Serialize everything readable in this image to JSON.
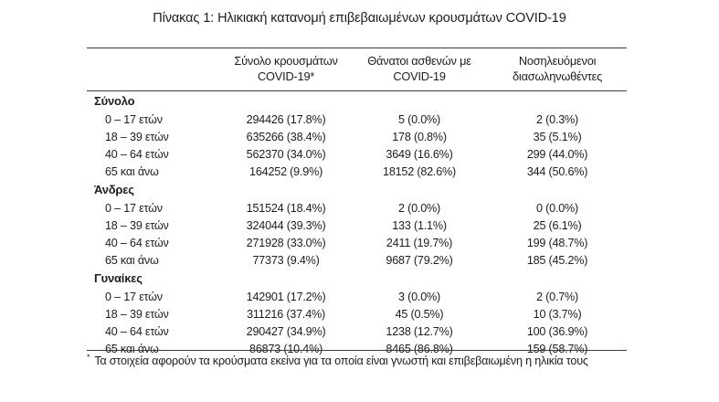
{
  "title": "Πίνακας 1: Ηλικιακή κατανομή επιβεβαιωμένων κρουσμάτων COVID-19",
  "table": {
    "columns": [
      {
        "line1": "Σύνολο κρουσμάτων",
        "line2": "COVID-19*"
      },
      {
        "line1": "Θάνατοι ασθενών με",
        "line2": "COVID-19"
      },
      {
        "line1": "Νοσηλευόμενοι",
        "line2": "διασωληνωθέντες"
      }
    ],
    "sections": [
      {
        "label": "Σύνολο",
        "rows": [
          {
            "age": "0 – 17 ετών",
            "cases": "294426 (17.8%)",
            "deaths": "5 (0.0%)",
            "intubated": "2 (0.3%)"
          },
          {
            "age": "18 – 39 ετών",
            "cases": "635266 (38.4%)",
            "deaths": "178 (0.8%)",
            "intubated": "35 (5.1%)"
          },
          {
            "age": "40 – 64 ετών",
            "cases": "562370 (34.0%)",
            "deaths": "3649 (16.6%)",
            "intubated": "299 (44.0%)"
          },
          {
            "age": "65 και άνω",
            "cases": "164252 (9.9%)",
            "deaths": "18152 (82.6%)",
            "intubated": "344 (50.6%)"
          }
        ]
      },
      {
        "label": "Άνδρες",
        "rows": [
          {
            "age": "0 – 17 ετών",
            "cases": "151524 (18.4%)",
            "deaths": "2 (0.0%)",
            "intubated": "0 (0.0%)"
          },
          {
            "age": "18 – 39 ετών",
            "cases": "324044 (39.3%)",
            "deaths": "133 (1.1%)",
            "intubated": "25 (6.1%)"
          },
          {
            "age": "40 – 64 ετών",
            "cases": "271928 (33.0%)",
            "deaths": "2411 (19.7%)",
            "intubated": "199 (48.7%)"
          },
          {
            "age": "65 και άνω",
            "cases": "77373 (9.4%)",
            "deaths": "9687 (79.2%)",
            "intubated": "185 (45.2%)"
          }
        ]
      },
      {
        "label": "Γυναίκες",
        "rows": [
          {
            "age": "0 – 17 ετών",
            "cases": "142901 (17.2%)",
            "deaths": "3 (0.0%)",
            "intubated": "2 (0.7%)"
          },
          {
            "age": "18 – 39 ετών",
            "cases": "311216 (37.4%)",
            "deaths": "45 (0.5%)",
            "intubated": "10 (3.7%)"
          },
          {
            "age": "40 – 64 ετών",
            "cases": "290427 (34.9%)",
            "deaths": "1238 (12.7%)",
            "intubated": "100 (36.9%)"
          },
          {
            "age": "65 και άνω",
            "cases": "86873 (10.4%)",
            "deaths": "8465 (86.8%)",
            "intubated": "159 (58.7%)"
          }
        ]
      }
    ]
  },
  "footnote": {
    "marker": "*",
    "text": "Τα στοιχεία αφορούν τα κρούσματα εκείνα για τα οποία είναι γνωστή και επιβεβαιωμένη η ηλικία τους"
  }
}
